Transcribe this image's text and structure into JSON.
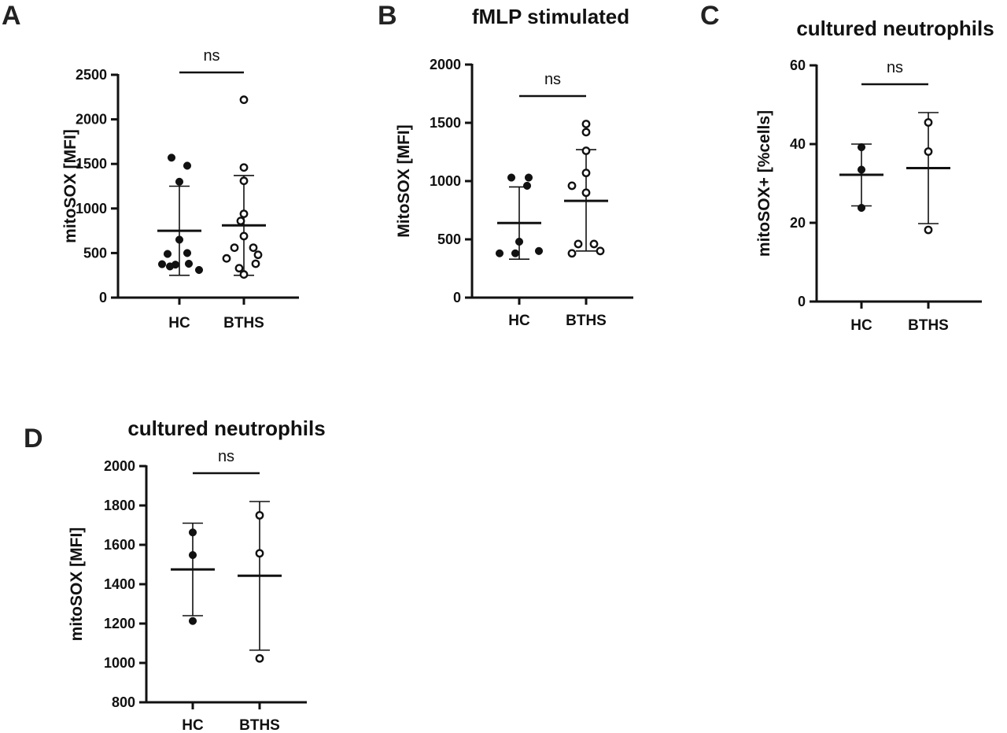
{
  "chart_data": [
    {
      "panel": "A",
      "type": "scatter",
      "title": "",
      "ylabel": "mitoSOX [MFI]",
      "ylim": [
        0,
        2500
      ],
      "yticks": [
        0,
        500,
        1000,
        1500,
        2000,
        2500
      ],
      "categories": [
        "HC",
        "BTHS"
      ],
      "significance": "ns",
      "groups": [
        {
          "name": "HC",
          "marker": "filled",
          "mean": 750,
          "sd_low": 250,
          "sd_high": 1250,
          "points": [
            [
              -10,
              1570
            ],
            [
              10,
              1480
            ],
            [
              0,
              1300
            ],
            [
              0,
              650
            ],
            [
              -15,
              490
            ],
            [
              10,
              500
            ],
            [
              -22,
              375
            ],
            [
              -5,
              370
            ],
            [
              12,
              380
            ],
            [
              -12,
              350
            ],
            [
              25,
              310
            ]
          ]
        },
        {
          "name": "BTHS",
          "marker": "open",
          "mean": 810,
          "sd_low": 250,
          "sd_high": 1370,
          "points": [
            [
              0,
              2220
            ],
            [
              0,
              1460
            ],
            [
              0,
              1310
            ],
            [
              0,
              940
            ],
            [
              -4,
              860
            ],
            [
              0,
              690
            ],
            [
              -12,
              560
            ],
            [
              12,
              560
            ],
            [
              -22,
              440
            ],
            [
              18,
              480
            ],
            [
              15,
              380
            ],
            [
              -6,
              330
            ],
            [
              0,
              260
            ]
          ]
        }
      ]
    },
    {
      "panel": "B",
      "type": "scatter",
      "title": "fMLP stimulated",
      "ylabel": "MitoSOX [MFI]",
      "ylim": [
        0,
        2000
      ],
      "yticks": [
        0,
        500,
        1000,
        1500,
        2000
      ],
      "categories": [
        "HC",
        "BTHS"
      ],
      "significance": "ns",
      "groups": [
        {
          "name": "HC",
          "marker": "filled",
          "mean": 640,
          "sd_low": 330,
          "sd_high": 950,
          "points": [
            [
              -10,
              1030
            ],
            [
              12,
              1030
            ],
            [
              10,
              960
            ],
            [
              0,
              480
            ],
            [
              -25,
              380
            ],
            [
              -5,
              380
            ],
            [
              25,
              400
            ]
          ]
        },
        {
          "name": "BTHS",
          "marker": "open",
          "mean": 830,
          "sd_low": 400,
          "sd_high": 1270,
          "points": [
            [
              0,
              1490
            ],
            [
              0,
              1420
            ],
            [
              0,
              1260
            ],
            [
              0,
              1070
            ],
            [
              -18,
              960
            ],
            [
              0,
              900
            ],
            [
              -10,
              460
            ],
            [
              10,
              460
            ],
            [
              -18,
              380
            ],
            [
              18,
              400
            ]
          ]
        }
      ]
    },
    {
      "panel": "C",
      "type": "scatter",
      "title": "cultured neutrophils",
      "ylabel": "mitoSOX+ [%cells]",
      "ylim": [
        0,
        60
      ],
      "yticks": [
        0,
        20,
        40,
        60
      ],
      "categories": [
        "HC",
        "BTHS"
      ],
      "significance": "ns",
      "groups": [
        {
          "name": "HC",
          "marker": "filled",
          "mean": 32.2,
          "sd_low": 24.3,
          "sd_high": 40,
          "points": [
            [
              0,
              39.2
            ],
            [
              0,
              33.5
            ],
            [
              0,
              23.8
            ]
          ]
        },
        {
          "name": "BTHS",
          "marker": "open",
          "mean": 33.9,
          "sd_low": 19.8,
          "sd_high": 48,
          "points": [
            [
              0,
              45.5
            ],
            [
              0,
              38.1
            ],
            [
              0,
              18.2
            ]
          ]
        }
      ]
    },
    {
      "panel": "D",
      "type": "scatter",
      "title": "cultured neutrophils",
      "ylabel": "mitoSOX [MFI]",
      "ylim": [
        800,
        2000
      ],
      "yticks": [
        800,
        1000,
        1200,
        1400,
        1600,
        1800,
        2000
      ],
      "categories": [
        "HC",
        "BTHS"
      ],
      "significance": "ns",
      "groups": [
        {
          "name": "HC",
          "marker": "filled",
          "mean": 1475,
          "sd_low": 1240,
          "sd_high": 1710,
          "points": [
            [
              0,
              1663
            ],
            [
              0,
              1548
            ],
            [
              0,
              1213
            ]
          ]
        },
        {
          "name": "BTHS",
          "marker": "open",
          "mean": 1443,
          "sd_low": 1065,
          "sd_high": 1820,
          "points": [
            [
              0,
              1750
            ],
            [
              0,
              1557
            ],
            [
              0,
              1023
            ]
          ]
        }
      ]
    }
  ]
}
